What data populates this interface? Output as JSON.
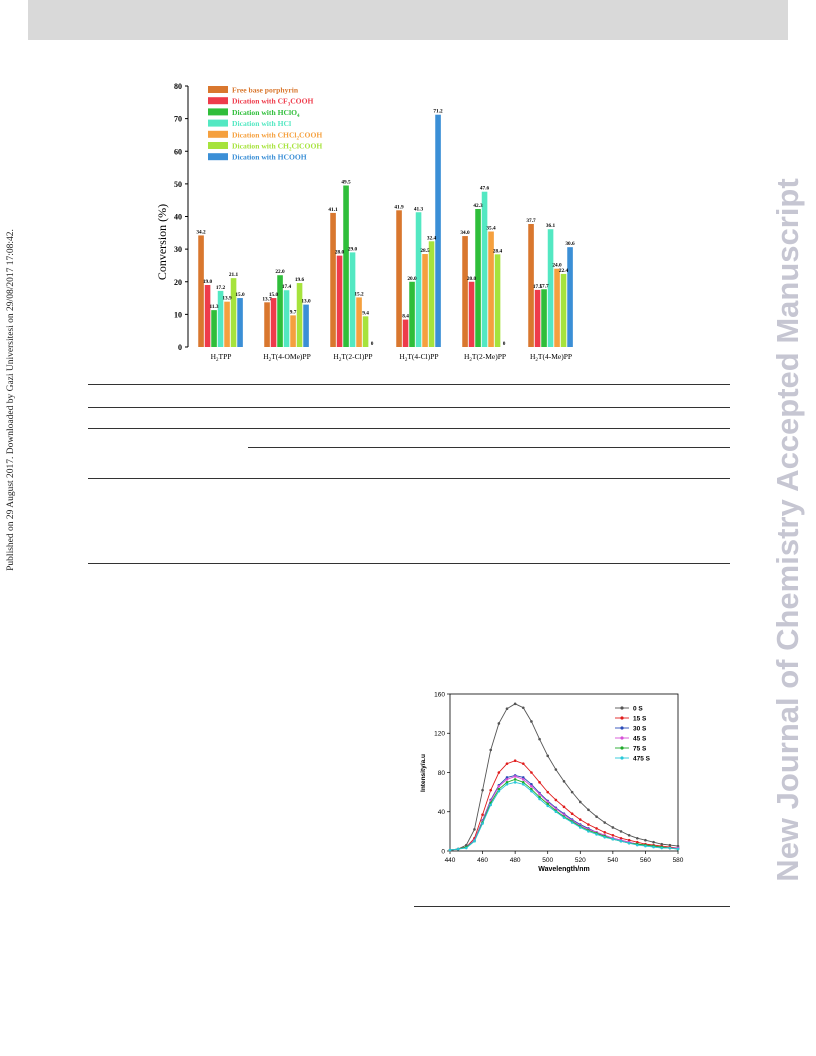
{
  "side_note": "Published on 29 August 2017. Downloaded by Gazi Universitesi on 29/08/2017 17:08:42.",
  "watermark": "New Journal of Chemistry Accepted Manuscript",
  "chart_data": [
    {
      "type": "bar",
      "ylabel": "Conversion (%)",
      "ylim": [
        0,
        80
      ],
      "yticks": [
        "0",
        "10",
        "20",
        "30",
        "40",
        "50",
        "60",
        "70",
        "80"
      ],
      "categories": [
        "H2TPP",
        "H2T(4-OMe)PP",
        "H2T(2-Cl)PP",
        "H2T(4-Cl)PP",
        "H2T(2-Me)PP",
        "H2T(4-Me)PP"
      ],
      "category_labels": [
        [
          "H",
          "2",
          "TPP"
        ],
        [
          "H",
          "2",
          "T(4-OMe)PP"
        ],
        [
          "H",
          "2",
          "T(2-Cl)PP"
        ],
        [
          "H",
          "2",
          "T(4-Cl)PP"
        ],
        [
          "H",
          "2",
          "T(2-Me)PP"
        ],
        [
          "H",
          "2",
          "T(4-Me)PP"
        ]
      ],
      "legend_position": "top-left",
      "series": [
        {
          "name": "Free base porphyrin",
          "name_parts": [
            "Free base porphyrin",
            "",
            ""
          ],
          "color": "#d9772e",
          "values": [
            34.2,
            13.7,
            41.1,
            41.9,
            34.0,
            37.7
          ],
          "labels": [
            "34.2",
            "13.7",
            "41.1",
            "41.9",
            "34.0",
            "37.7"
          ]
        },
        {
          "name": "Dication with CF3COOH",
          "name_parts": [
            "Dication with CF",
            "3",
            "COOH"
          ],
          "color": "#ee3b4b",
          "values": [
            19.0,
            15.0,
            28.0,
            8.4,
            20.0,
            17.5
          ],
          "labels": [
            "19.0",
            "15.0",
            "28.0",
            "8.4",
            "20.0",
            "17.5"
          ]
        },
        {
          "name": "Dication with HClO4",
          "name_parts": [
            "Dication with HClO",
            "4",
            ""
          ],
          "color": "#2fbe3a",
          "values": [
            11.3,
            22.0,
            49.5,
            20.0,
            42.3,
            17.7
          ],
          "labels": [
            "11.3",
            "22.0",
            "49.5",
            "20.0",
            "42.3",
            "17.7"
          ]
        },
        {
          "name": "Dication with HCl",
          "name_parts": [
            "Dication with HCl",
            "",
            ""
          ],
          "color": "#53e8c2",
          "values": [
            17.2,
            17.4,
            29.0,
            41.3,
            47.6,
            36.1
          ],
          "labels": [
            "17.2",
            "17.4",
            "29.0",
            "41.3",
            "47.6",
            "36.1"
          ]
        },
        {
          "name": "Dication with CHCl2COOH",
          "name_parts": [
            "Dication with CHCl",
            "2",
            "COOH"
          ],
          "color": "#f5a03e",
          "values": [
            13.9,
            9.7,
            15.2,
            28.5,
            35.4,
            24.0
          ],
          "labels": [
            "13.9",
            "9.7",
            "15.2",
            "28.5",
            "35.4",
            "24.0"
          ]
        },
        {
          "name": "Dication with CH2ClCOOH",
          "name_parts": [
            "Dication with CH",
            "2",
            "ClCOOH"
          ],
          "color": "#a6e33c",
          "values": [
            21.1,
            19.6,
            9.4,
            32.4,
            28.4,
            22.4
          ],
          "labels": [
            "21.1",
            "19.6",
            "9.4",
            "32.4",
            "28.4",
            "22.4"
          ]
        },
        {
          "name": "Dication with HCOOH",
          "name_parts": [
            "Dication with HCOOH",
            "",
            ""
          ],
          "color": "#3b8fd6",
          "values": [
            15.0,
            13.0,
            0,
            71.2,
            0,
            30.6
          ],
          "labels": [
            "15.0",
            "13.0",
            "0",
            "71.2",
            "0",
            "30.6"
          ]
        }
      ]
    },
    {
      "type": "line",
      "xlabel": "Wavelength/nm",
      "ylabel": "Intensity/a.u",
      "xlim": [
        440,
        580
      ],
      "ylim": [
        0,
        160
      ],
      "xticks": [
        "440",
        "460",
        "480",
        "500",
        "520",
        "540",
        "560",
        "580"
      ],
      "yticks": [
        "0",
        "40",
        "80",
        "120",
        "160"
      ],
      "legend_position": "top-right",
      "x": [
        440,
        445,
        450,
        455,
        460,
        465,
        470,
        475,
        480,
        485,
        490,
        495,
        500,
        505,
        510,
        515,
        520,
        525,
        530,
        535,
        540,
        545,
        550,
        555,
        560,
        565,
        570,
        575,
        580
      ],
      "series": [
        {
          "name": "0 S",
          "color": "#555555",
          "values": [
            1,
            2,
            6,
            22,
            62,
            103,
            130,
            145,
            150,
            146,
            132,
            114,
            97,
            83,
            71,
            60,
            50,
            42,
            35,
            29,
            24,
            20,
            16,
            13,
            11,
            9,
            7,
            6,
            5
          ]
        },
        {
          "name": "15 S",
          "color": "#e01d1d",
          "values": [
            1,
            2,
            4,
            13,
            37,
            62,
            80,
            89,
            92,
            89,
            80,
            70,
            60,
            52,
            45,
            38,
            32,
            27,
            23,
            19,
            16,
            13,
            11,
            9,
            7,
            6,
            5,
            4,
            3
          ]
        },
        {
          "name": "30 S",
          "color": "#2b4bb8",
          "values": [
            1,
            2,
            4,
            11,
            31,
            52,
            67,
            75,
            77,
            75,
            68,
            59,
            51,
            44,
            38,
            32,
            27,
            23,
            19,
            16,
            13,
            11,
            9,
            7,
            6,
            5,
            4,
            3,
            3
          ]
        },
        {
          "name": "45 S",
          "color": "#d64fd6",
          "values": [
            1,
            2,
            4,
            11,
            30,
            51,
            66,
            73,
            76,
            73,
            66,
            58,
            50,
            43,
            37,
            31,
            26,
            22,
            19,
            16,
            13,
            11,
            9,
            7,
            6,
            5,
            4,
            3,
            3
          ]
        },
        {
          "name": "75 S",
          "color": "#1faa2a",
          "values": [
            1,
            2,
            4,
            10,
            29,
            49,
            63,
            70,
            73,
            70,
            63,
            55,
            48,
            41,
            35,
            30,
            25,
            21,
            18,
            15,
            12,
            10,
            8,
            7,
            6,
            5,
            4,
            3,
            2
          ]
        },
        {
          "name": "475 S",
          "color": "#28c8d8",
          "values": [
            1,
            2,
            3,
            10,
            28,
            47,
            61,
            68,
            70,
            68,
            61,
            53,
            46,
            40,
            34,
            29,
            24,
            20,
            17,
            14,
            12,
            10,
            8,
            6,
            5,
            4,
            3,
            3,
            2
          ]
        }
      ]
    }
  ]
}
